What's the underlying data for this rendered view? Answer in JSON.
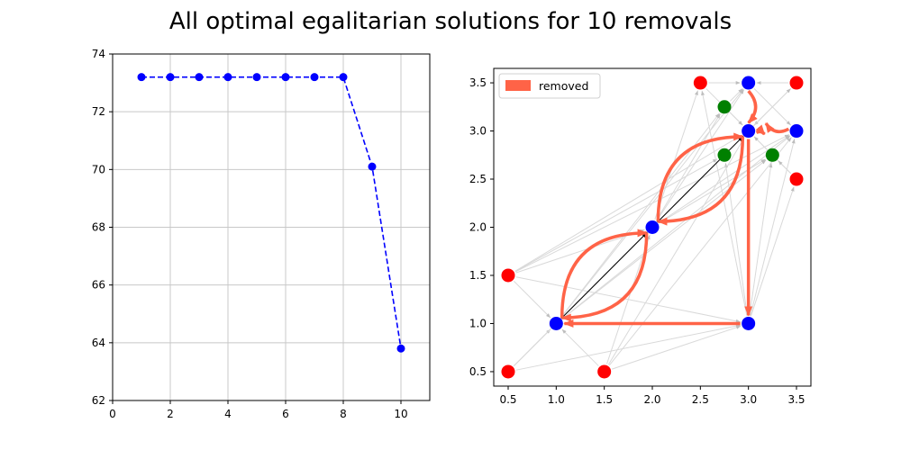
{
  "figure": {
    "title": "All optimal egalitarian solutions for 10 removals"
  },
  "chart_data": [
    {
      "type": "line",
      "x": [
        1,
        2,
        3,
        4,
        5,
        6,
        7,
        8,
        9,
        10
      ],
      "y": [
        73.2,
        73.2,
        73.2,
        73.2,
        73.2,
        73.2,
        73.2,
        73.2,
        70.1,
        63.8
      ],
      "xlim": [
        0,
        11
      ],
      "ylim": [
        62,
        74
      ],
      "xticks": [
        0,
        2,
        4,
        6,
        8,
        10
      ],
      "yticks": [
        62,
        64,
        66,
        68,
        70,
        72,
        74
      ],
      "grid": true,
      "line_style": "dashed",
      "color": "#0000ff"
    },
    {
      "type": "scatter",
      "xlim": [
        0.35,
        3.65
      ],
      "ylim": [
        0.35,
        3.65
      ],
      "xticks": [
        "0.5",
        "1.0",
        "1.5",
        "2.0",
        "2.5",
        "3.0",
        "3.5"
      ],
      "yticks": [
        "0.5",
        "1.0",
        "1.5",
        "2.0",
        "2.5",
        "3.0",
        "3.5"
      ],
      "grid": false,
      "legend": {
        "position": "top-left",
        "entries": [
          {
            "label": "removed",
            "color": "#ff6347"
          }
        ]
      },
      "nodes": [
        {
          "x": 0.5,
          "y": 0.5,
          "color": "red"
        },
        {
          "x": 1.5,
          "y": 0.5,
          "color": "red"
        },
        {
          "x": 0.5,
          "y": 1.5,
          "color": "red"
        },
        {
          "x": 2.5,
          "y": 3.5,
          "color": "red"
        },
        {
          "x": 3.5,
          "y": 3.5,
          "color": "red"
        },
        {
          "x": 3.5,
          "y": 2.5,
          "color": "red"
        },
        {
          "x": 1.0,
          "y": 1.0,
          "color": "blue"
        },
        {
          "x": 2.0,
          "y": 2.0,
          "color": "blue"
        },
        {
          "x": 3.0,
          "y": 3.0,
          "color": "blue"
        },
        {
          "x": 3.0,
          "y": 1.0,
          "color": "blue"
        },
        {
          "x": 3.0,
          "y": 3.5,
          "color": "blue"
        },
        {
          "x": 3.5,
          "y": 3.0,
          "color": "blue"
        },
        {
          "x": 2.75,
          "y": 3.25,
          "color": "green"
        },
        {
          "x": 2.75,
          "y": 2.75,
          "color": "green"
        },
        {
          "x": 3.25,
          "y": 2.75,
          "color": "green"
        }
      ],
      "gray_edges": [
        [
          0.5,
          0.5,
          1.0,
          1.0
        ],
        [
          1.5,
          0.5,
          1.0,
          1.0
        ],
        [
          0.5,
          1.5,
          1.0,
          1.0
        ],
        [
          0.5,
          0.5,
          3.0,
          1.0
        ],
        [
          1.5,
          0.5,
          3.0,
          1.0
        ],
        [
          1.5,
          0.5,
          3.0,
          3.0
        ],
        [
          1.5,
          0.5,
          2.0,
          2.0
        ],
        [
          0.5,
          1.5,
          2.0,
          2.0
        ],
        [
          0.5,
          1.5,
          3.0,
          3.0
        ],
        [
          0.5,
          1.5,
          2.75,
          2.75
        ],
        [
          0.5,
          1.5,
          3.0,
          1.0
        ],
        [
          0.5,
          0.5,
          2.0,
          2.0
        ],
        [
          1.0,
          1.0,
          3.0,
          3.5
        ],
        [
          1.0,
          1.0,
          2.75,
          3.25
        ],
        [
          1.0,
          1.0,
          3.5,
          3.0
        ],
        [
          2.0,
          2.0,
          3.0,
          3.5
        ],
        [
          2.0,
          2.0,
          3.5,
          3.0
        ],
        [
          2.0,
          2.0,
          2.75,
          3.25
        ],
        [
          2.0,
          2.0,
          3.25,
          2.75
        ],
        [
          3.0,
          1.0,
          3.5,
          3.0
        ],
        [
          3.0,
          1.0,
          3.25,
          2.75
        ],
        [
          3.0,
          1.0,
          3.5,
          2.5
        ],
        [
          3.0,
          1.0,
          2.75,
          2.75
        ],
        [
          3.0,
          1.0,
          2.5,
          3.5
        ],
        [
          2.5,
          3.5,
          3.0,
          3.0
        ],
        [
          3.5,
          3.5,
          3.0,
          3.0
        ],
        [
          3.5,
          2.5,
          3.0,
          3.0
        ],
        [
          2.75,
          3.25,
          3.0,
          3.0
        ],
        [
          3.25,
          2.75,
          3.0,
          3.0
        ],
        [
          3.0,
          3.5,
          3.5,
          3.0
        ],
        [
          2.5,
          3.5,
          3.0,
          3.5
        ],
        [
          3.5,
          3.5,
          3.0,
          3.5
        ],
        [
          2.75,
          3.25,
          3.0,
          3.5
        ],
        [
          3.5,
          2.5,
          3.25,
          2.75
        ],
        [
          2.75,
          2.75,
          3.0,
          3.0
        ],
        [
          1.5,
          0.5,
          3.5,
          3.0
        ],
        [
          0.5,
          0.5,
          3.0,
          3.0
        ],
        [
          0.5,
          1.5,
          3.5,
          3.0
        ],
        [
          1.0,
          1.0,
          3.25,
          2.75
        ],
        [
          2.0,
          2.0,
          3.5,
          3.5
        ],
        [
          2.0,
          2.0,
          2.5,
          3.5
        ]
      ],
      "black_edges": [
        [
          1.0,
          1.0,
          2.0,
          2.0
        ],
        [
          2.0,
          2.0,
          3.0,
          3.0
        ]
      ],
      "removed_edges": [
        [
          1.0,
          1.0,
          2.0,
          2.0,
          0.5
        ],
        [
          2.0,
          2.0,
          1.0,
          1.0,
          0.5
        ],
        [
          2.0,
          2.0,
          3.0,
          3.0,
          0.5
        ],
        [
          3.0,
          3.0,
          2.0,
          2.0,
          0.5
        ],
        [
          3.0,
          3.0,
          3.0,
          1.0,
          0
        ],
        [
          3.0,
          1.0,
          1.0,
          1.0,
          0
        ],
        [
          3.0,
          3.5,
          3.0,
          3.0,
          0.45
        ],
        [
          3.5,
          3.0,
          3.1,
          3.1,
          0.45
        ],
        [
          3.0,
          3.0,
          3.25,
          2.95,
          0.4
        ]
      ]
    }
  ]
}
